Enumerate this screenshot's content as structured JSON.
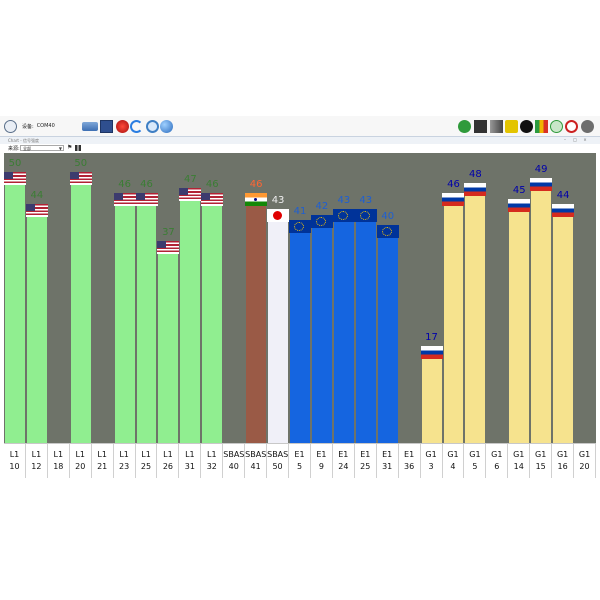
{
  "toolbar": {
    "port_label": "设备:",
    "port_value": "COM40",
    "left_icons": [
      "clock-icon",
      "settings-icon"
    ],
    "tool_icons": [
      "connect-icon",
      "save-icon",
      "record-icon",
      "refresh-icon",
      "config-icon",
      "globe-icon"
    ],
    "right_icons": [
      "satellite-icon",
      "monitor-icon",
      "signal-icon",
      "star-icon",
      "moon-icon",
      "chart-icon",
      "radar-icon",
      "map-icon",
      "gear-icon"
    ]
  },
  "window": {
    "subtitle": "Chart - 信号强度",
    "minimize": "–",
    "maximize": "□",
    "close": "×"
  },
  "filter": {
    "label": "来源:",
    "value": "全部",
    "flag_icon": "flag-icon",
    "grid_icon": "grid-icon"
  },
  "colors": {
    "background": "#6e7369",
    "gps": "#90ee90",
    "sbas_in": "#9a5a46",
    "sbas_jp": "#f0f0f8",
    "galileo": "#1565e0",
    "glonass": "#f6e38e",
    "value_gps": "#3b7d34",
    "value_sbas": "#ff6633",
    "value_sbas_jp": "#eeeeee",
    "value_galileo": "#1e5fd2",
    "value_glonass": "#0000aa"
  },
  "chart_data": {
    "type": "bar",
    "ylim": [
      0,
      55
    ],
    "categories": [
      "L1 10",
      "L1 12",
      "L1 18",
      "L1 20",
      "L1 21",
      "L1 23",
      "L1 25",
      "L1 26",
      "L1 31",
      "L1 32",
      "SBAS 40",
      "SBAS 41",
      "SBAS 50",
      "E1 5",
      "E1 9",
      "E1 24",
      "E1 25",
      "E1 31",
      "E1 36",
      "G1 3",
      "G1 4",
      "G1 5",
      "G1 6",
      "G1 14",
      "G1 15",
      "G1 16",
      "G1 20"
    ],
    "satellites": [
      {
        "system": "L1",
        "prn": "10",
        "value": 50,
        "flag": "usa"
      },
      {
        "system": "L1",
        "prn": "12",
        "value": 44,
        "flag": "usa"
      },
      {
        "system": "L1",
        "prn": "18",
        "value": null,
        "flag": ""
      },
      {
        "system": "L1",
        "prn": "20",
        "value": 50,
        "flag": "usa"
      },
      {
        "system": "L1",
        "prn": "21",
        "value": null,
        "flag": ""
      },
      {
        "system": "L1",
        "prn": "23",
        "value": 46,
        "flag": "usa"
      },
      {
        "system": "L1",
        "prn": "25",
        "value": 46,
        "flag": "usa"
      },
      {
        "system": "L1",
        "prn": "26",
        "value": 37,
        "flag": "usa"
      },
      {
        "system": "L1",
        "prn": "31",
        "value": 47,
        "flag": "usa"
      },
      {
        "system": "L1",
        "prn": "32",
        "value": 46,
        "flag": "usa"
      },
      {
        "system": "SBAS",
        "prn": "40",
        "value": null,
        "flag": ""
      },
      {
        "system": "SBAS",
        "prn": "41",
        "value": 46,
        "flag": "india"
      },
      {
        "system": "SBAS",
        "prn": "50",
        "value": 43,
        "flag": "japan"
      },
      {
        "system": "E1",
        "prn": "5",
        "value": 41,
        "flag": "eu"
      },
      {
        "system": "E1",
        "prn": "9",
        "value": 42,
        "flag": "eu"
      },
      {
        "system": "E1",
        "prn": "24",
        "value": 43,
        "flag": "eu"
      },
      {
        "system": "E1",
        "prn": "25",
        "value": 43,
        "flag": "eu"
      },
      {
        "system": "E1",
        "prn": "31",
        "value": 40,
        "flag": "eu"
      },
      {
        "system": "E1",
        "prn": "36",
        "value": null,
        "flag": ""
      },
      {
        "system": "G1",
        "prn": "3",
        "value": 17,
        "flag": "russia"
      },
      {
        "system": "G1",
        "prn": "4",
        "value": 46,
        "flag": "russia"
      },
      {
        "system": "G1",
        "prn": "5",
        "value": 48,
        "flag": "russia"
      },
      {
        "system": "G1",
        "prn": "6",
        "value": null,
        "flag": ""
      },
      {
        "system": "G1",
        "prn": "14",
        "value": 45,
        "flag": "russia"
      },
      {
        "system": "G1",
        "prn": "15",
        "value": 49,
        "flag": "russia"
      },
      {
        "system": "G1",
        "prn": "16",
        "value": 44,
        "flag": "russia"
      },
      {
        "system": "G1",
        "prn": "20",
        "value": null,
        "flag": ""
      }
    ]
  }
}
